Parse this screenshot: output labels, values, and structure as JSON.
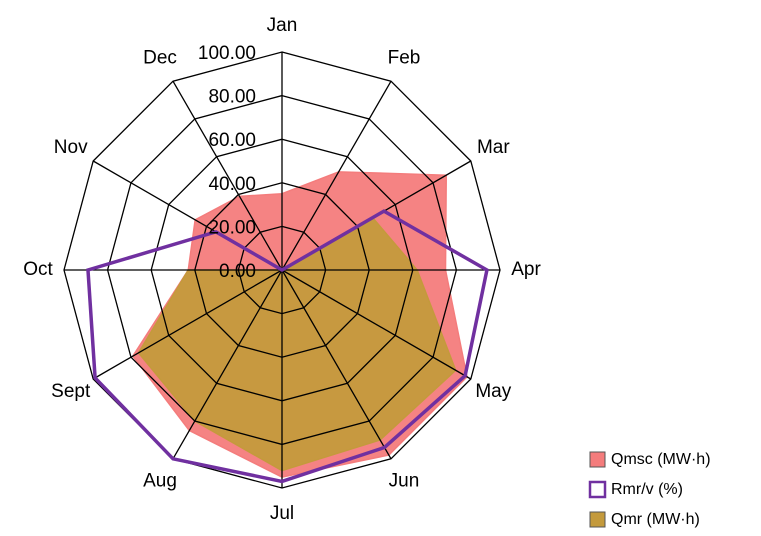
{
  "chart_data": {
    "type": "radar",
    "categories": [
      "Jan",
      "Feb",
      "Mar",
      "Apr",
      "May",
      "Jun",
      "Jul",
      "Aug",
      "Sept",
      "Oct",
      "Nov",
      "Dec"
    ],
    "ylim": [
      0,
      100
    ],
    "yticks": [
      {
        "value": 0,
        "label": "0.00"
      },
      {
        "value": 20,
        "label": "20.00"
      },
      {
        "value": 40,
        "label": "40.00"
      },
      {
        "value": 60,
        "label": "60.00"
      },
      {
        "value": 80,
        "label": "80.00"
      },
      {
        "value": 100,
        "label": "100.00"
      }
    ],
    "legend": "bottom-right",
    "series": [
      {
        "name": "Qmsc (MW·h)",
        "color": "#f47c7c",
        "style": "area",
        "values": [
          35,
          52,
          87,
          75,
          98,
          98,
          95,
          85,
          79,
          43,
          46,
          39
        ]
      },
      {
        "name": "Rmr/v (%)",
        "color": "#7030a0",
        "style": "line",
        "values": [
          0,
          0,
          54,
          94,
          97,
          94,
          97,
          100,
          99,
          89,
          35,
          0
        ]
      },
      {
        "name": "Qmr (MW·h)",
        "color": "#c49a3c",
        "style": "area",
        "values": [
          0,
          0,
          48,
          62,
          92,
          90,
          92,
          80,
          76,
          43,
          0,
          0
        ]
      }
    ]
  }
}
